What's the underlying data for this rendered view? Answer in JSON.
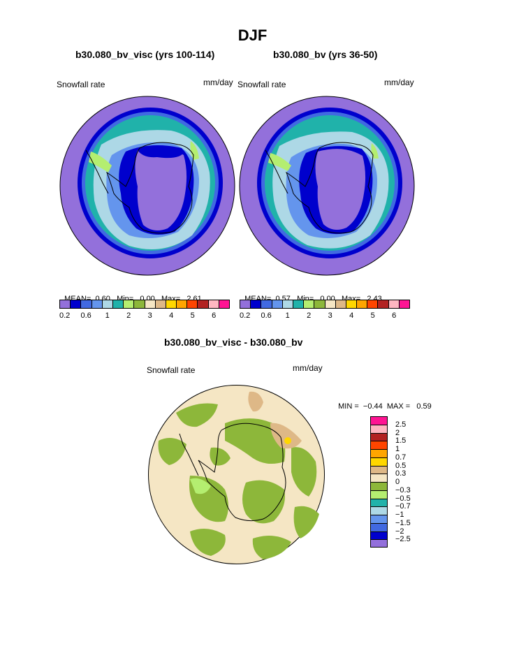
{
  "title": "DJF",
  "panels": [
    {
      "subtitle": "b30.080_bv_visc (yrs 100-114)",
      "left_label": "Snowfall rate",
      "right_label": "mm/day",
      "mean_label": "MEAN=",
      "mean": "0.60",
      "min_label": "Min=",
      "min": "0.00",
      "max_label": "Max=",
      "max": "2.61"
    },
    {
      "subtitle": "b30.080_bv (yrs 36-50)",
      "left_label": "Snowfall rate",
      "right_label": "mm/day",
      "mean_label": "MEAN=",
      "mean": "0.57",
      "min_label": "Min=",
      "min": "0.00",
      "max_label": "Max=",
      "max": "2.43"
    }
  ],
  "colorbar": {
    "colors": [
      "#9370db",
      "#0000cd",
      "#4169e1",
      "#6495ed",
      "#add8e6",
      "#20b2aa",
      "#b4ee70",
      "#8db73a",
      "#f5e6c4",
      "#deb887",
      "#ffd700",
      "#ffa500",
      "#ff4500",
      "#b22222",
      "#ffb6c1",
      "#ff1493"
    ],
    "tick_labels": [
      "0.2",
      "0.6",
      "1",
      "2",
      "3",
      "4",
      "5",
      "6"
    ]
  },
  "diff": {
    "subtitle": "b30.080_bv_visc - b30.080_bv",
    "left_label": "Snowfall rate",
    "right_label": "mm/day",
    "min_label": "MIN =",
    "min": "−0.44",
    "max_label": "MAX =",
    "max": "0.59",
    "colors": [
      "#ff1493",
      "#ffb6c1",
      "#b22222",
      "#ff4500",
      "#ffa500",
      "#ffd700",
      "#deb887",
      "#f5e6c4",
      "#8db73a",
      "#b4ee70",
      "#20b2aa",
      "#add8e6",
      "#6495ed",
      "#4169e1",
      "#0000cd",
      "#9370db"
    ],
    "labels": [
      "2.5",
      "2",
      "1.5",
      "1",
      "0.7",
      "0.5",
      "0.3",
      "0",
      "−0.3",
      "−0.5",
      "−0.7",
      "−1",
      "−1.5",
      "−2",
      "−2.5"
    ]
  }
}
